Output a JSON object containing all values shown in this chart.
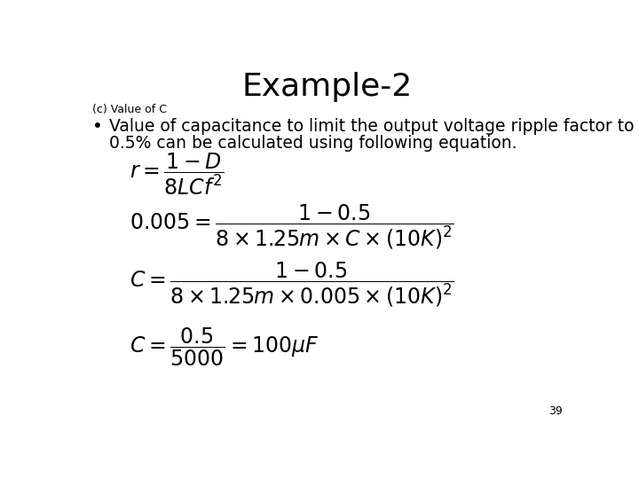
{
  "title": "Example-2",
  "subtitle": "(c) Value of C",
  "bullet_text_line1": "Value of capacitance to limit the output voltage ripple factor to",
  "bullet_text_line2": "0.5% can be calculated using following equation.",
  "page_number": "39",
  "bg_color": "#ffffff",
  "text_color": "#000000",
  "title_fontsize": 26,
  "subtitle_fontsize": 9,
  "bullet_fontsize": 13.5,
  "eq_fontsize": 17
}
